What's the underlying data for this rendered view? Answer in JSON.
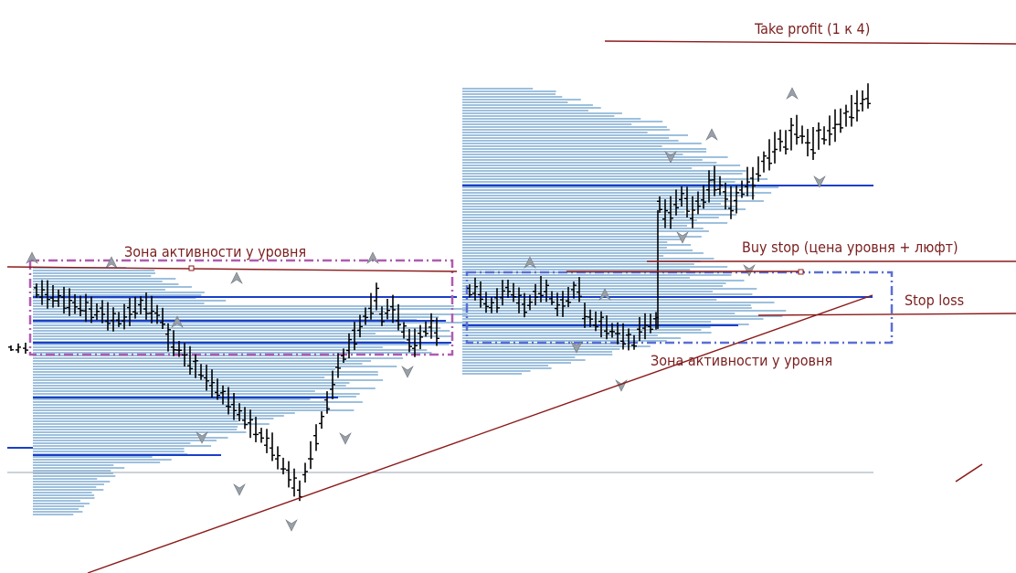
{
  "chart_data": {
    "type": "ohlc-with-volume-profile",
    "annotations": {
      "take_profit": "Take profit (1 к 4)",
      "activity_zone_left": "Зона активности у уровня",
      "activity_zone_right": "Зона активности у уровня",
      "buy_stop": "Buy stop (цена уровня + люфт)",
      "stop_loss": "Stop loss"
    },
    "colors": {
      "annotation_line": "#8b1a1a",
      "profile_bar": "#9ec0dd",
      "level_line": "#1a3fc9",
      "zone_left": "#b05cb0",
      "zone_right": "#5a6fd6",
      "candle": "#000000",
      "fractal": "#9aa0a8",
      "baseline": "#9aa6b2"
    },
    "grid": false,
    "legend": false
  }
}
